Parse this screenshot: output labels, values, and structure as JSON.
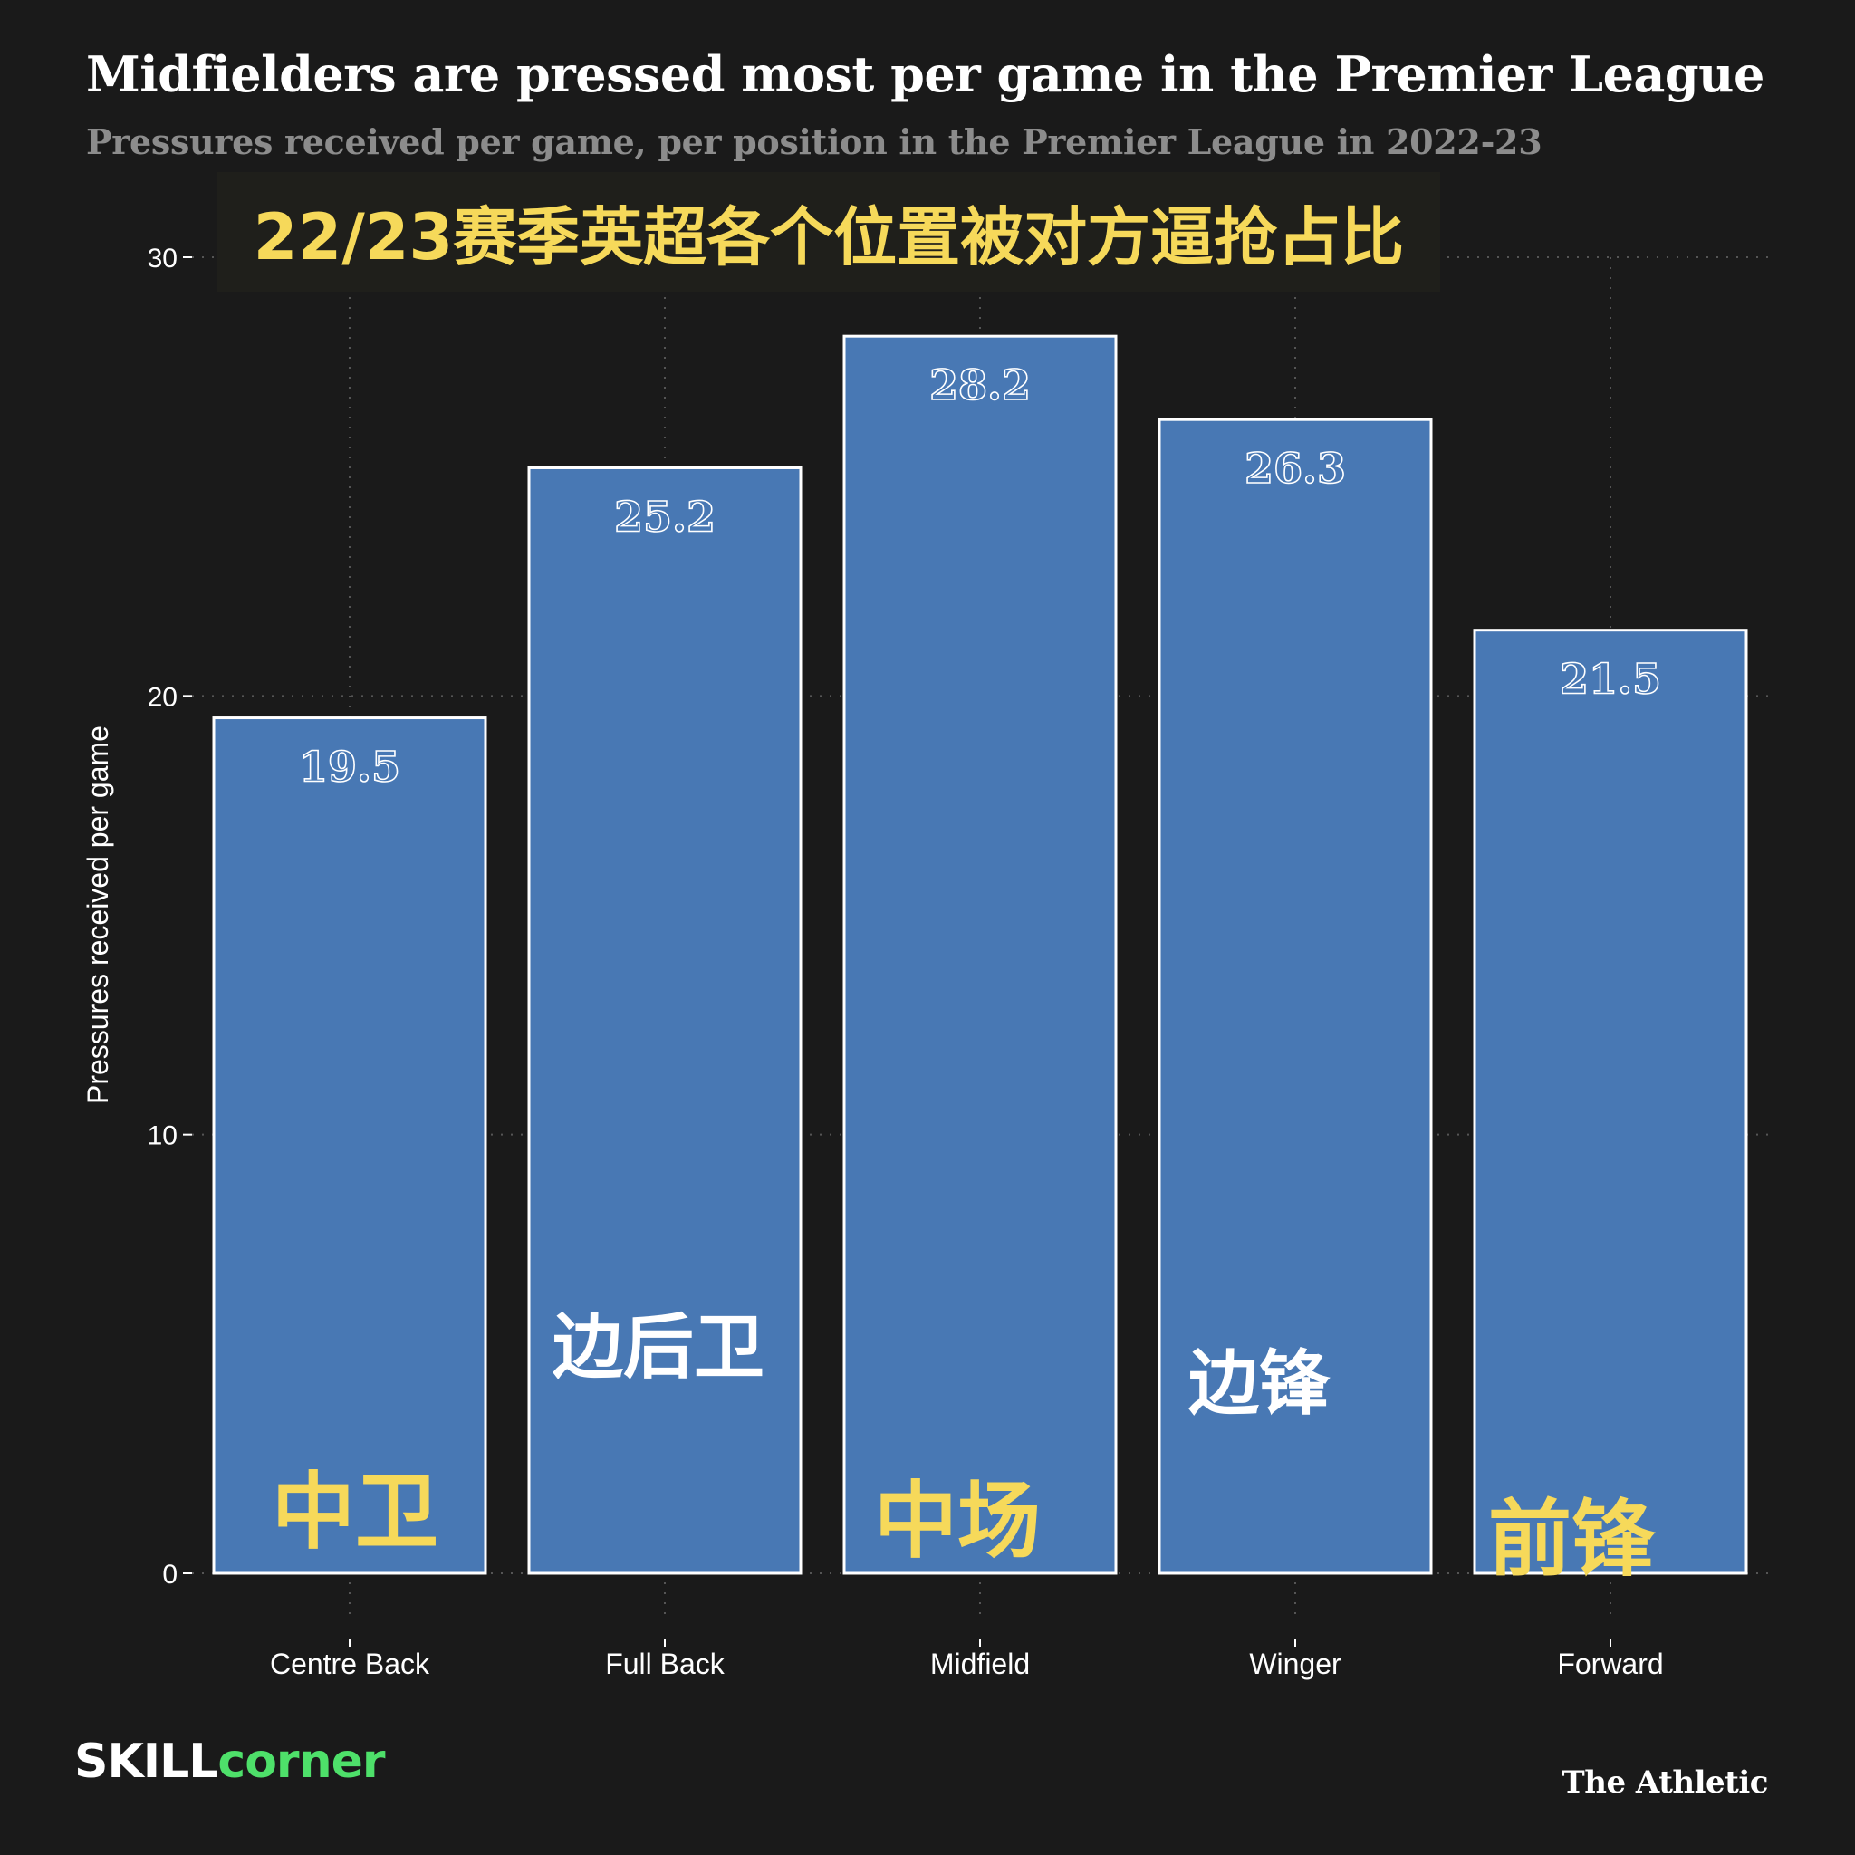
{
  "chart_data": {
    "type": "bar",
    "title": "Midfielders are pressed most per game in the Premier League",
    "subtitle": "Pressures received per game, per position in the Premier League in 2022-23",
    "title_cn": "22/23赛季英超各个位置被对方逼抢占比",
    "xlabel": "",
    "ylabel": "Pressures received per game",
    "ylim": [
      0,
      30
    ],
    "yticks": [
      0,
      10,
      20,
      30
    ],
    "grid": true,
    "categories": [
      "Centre Back",
      "Full Back",
      "Midfield",
      "Winger",
      "Forward"
    ],
    "categories_cn": [
      "中卫",
      "边后卫",
      "中场",
      "边锋",
      "前锋"
    ],
    "values": [
      19.5,
      25.2,
      28.2,
      26.3,
      21.5
    ],
    "value_labels": [
      "19.5",
      "25.2",
      "28.2",
      "26.3",
      "21.5"
    ]
  },
  "branding": {
    "left_logo_part1": "SKILL",
    "left_logo_part2": "corner",
    "right_logo": "The Athletic"
  },
  "colors": {
    "background": "#1a1a1a",
    "bar_fill": "#4878b4",
    "bar_stroke": "#ffffff",
    "grid": "#555555",
    "subtitle": "#8c8c8c",
    "cn_yellow": "#f6d95a",
    "brand_green": "#4ee06a"
  }
}
